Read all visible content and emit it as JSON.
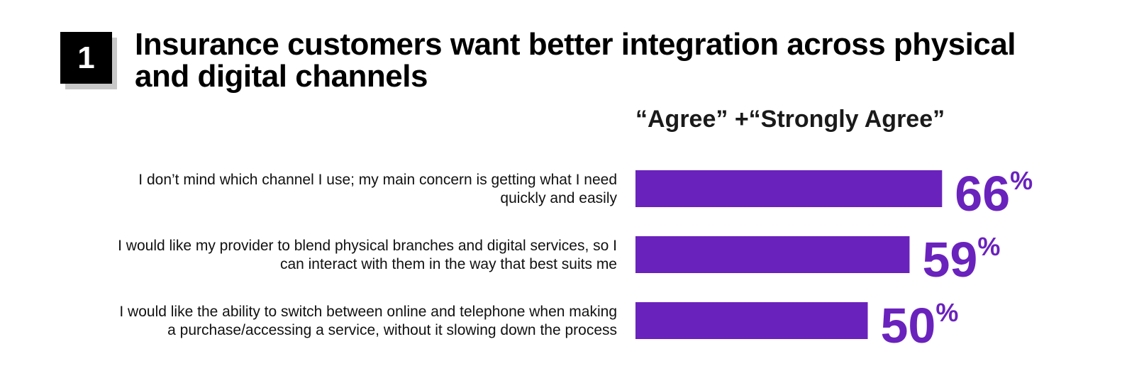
{
  "badge": {
    "number": "1"
  },
  "header": {
    "title": "Insurance customers want better integration across physical and digital channels"
  },
  "colors": {
    "bar": "#6a22bd",
    "badge_bg": "#000000",
    "badge_shadow": "#c8c8c8"
  },
  "chart_data": {
    "type": "bar",
    "orientation": "horizontal",
    "title": "“Agree” +“Strongly Agree”",
    "unit": "%",
    "categories": [
      [
        "I don’t mind which channel I use; my main concern is getting what I need",
        "quickly and easily"
      ],
      [
        "I would like my provider to blend physical branches and digital services, so I",
        "can interact with them in the way that best suits me"
      ],
      [
        "I would like the ability to switch between online and telephone when making",
        "a purchase/accessing a service, without it slowing down the process"
      ]
    ],
    "values": [
      66,
      59,
      50
    ],
    "xlim": [
      0,
      100
    ],
    "grid": false,
    "legend": "none"
  }
}
